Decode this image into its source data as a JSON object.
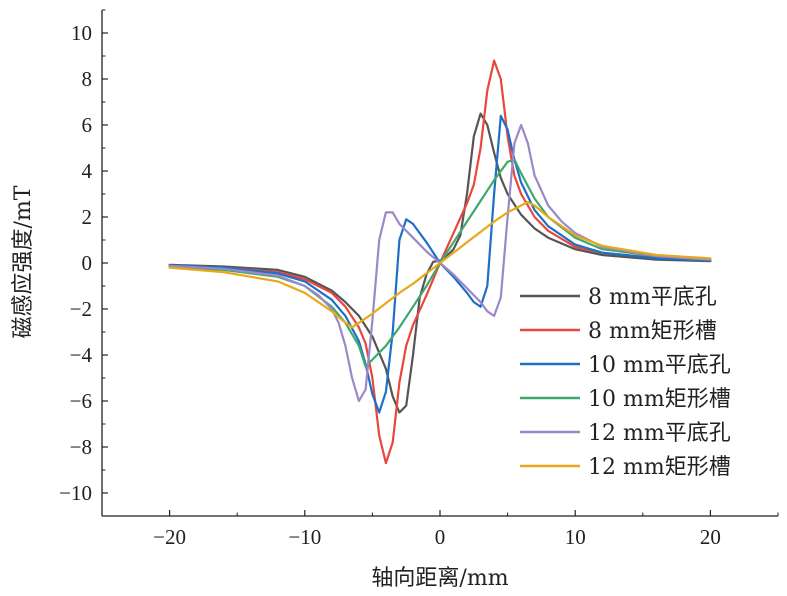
{
  "chart_data": {
    "type": "line",
    "xlabel": "轴向距离/mm",
    "ylabel": "磁感应强度/mT",
    "xlim": [
      -25,
      25
    ],
    "ylim": [
      -11,
      11
    ],
    "xticks": [
      -20,
      -10,
      0,
      10,
      20
    ],
    "yticks": [
      -10,
      -8,
      -6,
      -4,
      -2,
      0,
      2,
      4,
      6,
      8,
      10
    ],
    "xtick_labels": [
      "−20",
      "−10",
      "0",
      "10",
      "20"
    ],
    "ytick_labels": [
      "−10",
      "−8",
      "−6",
      "−4",
      "−2",
      "0",
      "2",
      "4",
      "6",
      "8",
      "10"
    ],
    "grid": false,
    "legend_position": "right",
    "series": [
      {
        "name": "8 mm平底孔",
        "color": "#555555",
        "points": [
          [
            -20,
            -0.08
          ],
          [
            -16,
            -0.15
          ],
          [
            -12,
            -0.3
          ],
          [
            -10,
            -0.6
          ],
          [
            -8,
            -1.2
          ],
          [
            -7,
            -1.7
          ],
          [
            -6,
            -2.3
          ],
          [
            -5,
            -3.2
          ],
          [
            -4,
            -4.6
          ],
          [
            -3.5,
            -5.8
          ],
          [
            -3,
            -6.5
          ],
          [
            -2.5,
            -6.2
          ],
          [
            -2,
            -4
          ],
          [
            -1.5,
            -1.5
          ],
          [
            -1,
            -0.5
          ],
          [
            -0.5,
            0.05
          ],
          [
            0,
            0.1
          ],
          [
            0.5,
            0.3
          ],
          [
            1,
            0.6
          ],
          [
            1.5,
            1.2
          ],
          [
            2,
            3
          ],
          [
            2.5,
            5.5
          ],
          [
            3,
            6.5
          ],
          [
            3.5,
            6
          ],
          [
            4,
            4.8
          ],
          [
            4.5,
            3.7
          ],
          [
            5,
            3
          ],
          [
            6,
            2.1
          ],
          [
            7,
            1.5
          ],
          [
            8,
            1.1
          ],
          [
            10,
            0.6
          ],
          [
            12,
            0.35
          ],
          [
            16,
            0.15
          ],
          [
            20,
            0.08
          ]
        ]
      },
      {
        "name": "8 mm矩形槽",
        "color": "#e8473d",
        "points": [
          [
            -20,
            -0.1
          ],
          [
            -16,
            -0.2
          ],
          [
            -12,
            -0.4
          ],
          [
            -10,
            -0.7
          ],
          [
            -8,
            -1.3
          ],
          [
            -7,
            -1.9
          ],
          [
            -6,
            -2.8
          ],
          [
            -5.5,
            -3.5
          ],
          [
            -5,
            -5
          ],
          [
            -4.5,
            -7.5
          ],
          [
            -4,
            -8.7
          ],
          [
            -3.5,
            -7.8
          ],
          [
            -3,
            -5.2
          ],
          [
            -2.5,
            -3.6
          ],
          [
            -2,
            -2.7
          ],
          [
            -1,
            -1.4
          ],
          [
            0,
            0
          ],
          [
            1,
            1.3
          ],
          [
            2,
            2.6
          ],
          [
            2.5,
            3.4
          ],
          [
            3,
            5
          ],
          [
            3.5,
            7.5
          ],
          [
            4,
            8.8
          ],
          [
            4.5,
            8
          ],
          [
            5,
            5.5
          ],
          [
            5.5,
            3.8
          ],
          [
            6,
            3
          ],
          [
            7,
            2
          ],
          [
            8,
            1.4
          ],
          [
            10,
            0.7
          ],
          [
            12,
            0.45
          ],
          [
            16,
            0.22
          ],
          [
            20,
            0.12
          ]
        ]
      },
      {
        "name": "10 mm平底孔",
        "color": "#1f6fc6",
        "points": [
          [
            -20,
            -0.1
          ],
          [
            -16,
            -0.2
          ],
          [
            -12,
            -0.45
          ],
          [
            -10,
            -0.8
          ],
          [
            -8,
            -1.6
          ],
          [
            -7,
            -2.3
          ],
          [
            -6,
            -3.4
          ],
          [
            -5.5,
            -4.4
          ],
          [
            -5,
            -5.7
          ],
          [
            -4.5,
            -6.5
          ],
          [
            -4,
            -5.6
          ],
          [
            -3.5,
            -3
          ],
          [
            -3,
            1
          ],
          [
            -2.5,
            1.9
          ],
          [
            -2,
            1.7
          ],
          [
            -1.5,
            1.3
          ],
          [
            -1,
            0.9
          ],
          [
            0,
            0
          ],
          [
            1,
            -0.6
          ],
          [
            2,
            -1.3
          ],
          [
            2.5,
            -1.7
          ],
          [
            3,
            -1.9
          ],
          [
            3.5,
            -1
          ],
          [
            4,
            3
          ],
          [
            4.5,
            6.4
          ],
          [
            5,
            5.8
          ],
          [
            5.5,
            4.5
          ],
          [
            6,
            3.5
          ],
          [
            7,
            2.3
          ],
          [
            8,
            1.6
          ],
          [
            10,
            0.8
          ],
          [
            12,
            0.45
          ],
          [
            16,
            0.2
          ],
          [
            20,
            0.1
          ]
        ]
      },
      {
        "name": "10 mm矩形槽",
        "color": "#3daa6c",
        "points": [
          [
            -20,
            -0.15
          ],
          [
            -16,
            -0.3
          ],
          [
            -12,
            -0.6
          ],
          [
            -10,
            -1
          ],
          [
            -8,
            -1.9
          ],
          [
            -7,
            -2.6
          ],
          [
            -6,
            -3.6
          ],
          [
            -5.5,
            -4.5
          ],
          [
            -5,
            -4.2
          ],
          [
            -4,
            -3.6
          ],
          [
            -3,
            -2.8
          ],
          [
            -2,
            -1.9
          ],
          [
            -1,
            -1
          ],
          [
            0,
            0
          ],
          [
            1,
            0.9
          ],
          [
            2,
            1.8
          ],
          [
            3,
            2.7
          ],
          [
            4,
            3.6
          ],
          [
            5,
            4.4
          ],
          [
            5.5,
            4.5
          ],
          [
            6,
            3.9
          ],
          [
            7,
            2.8
          ],
          [
            8,
            2
          ],
          [
            10,
            1.1
          ],
          [
            12,
            0.6
          ],
          [
            16,
            0.3
          ],
          [
            20,
            0.15
          ]
        ]
      },
      {
        "name": "12 mm平底孔",
        "color": "#9b88c8",
        "points": [
          [
            -20,
            -0.12
          ],
          [
            -16,
            -0.25
          ],
          [
            -12,
            -0.55
          ],
          [
            -10,
            -1
          ],
          [
            -9,
            -1.4
          ],
          [
            -8,
            -2
          ],
          [
            -7.5,
            -2.6
          ],
          [
            -7,
            -3.6
          ],
          [
            -6.5,
            -5
          ],
          [
            -6,
            -6
          ],
          [
            -5.5,
            -5.5
          ],
          [
            -5,
            -2.5
          ],
          [
            -4.5,
            1
          ],
          [
            -4,
            2.2
          ],
          [
            -3.5,
            2.2
          ],
          [
            -3,
            1.7
          ],
          [
            -2,
            1.1
          ],
          [
            -1,
            0.5
          ],
          [
            0,
            0
          ],
          [
            1,
            -0.5
          ],
          [
            2,
            -1.1
          ],
          [
            3,
            -1.7
          ],
          [
            3.5,
            -2.1
          ],
          [
            4,
            -2.3
          ],
          [
            4.5,
            -1.5
          ],
          [
            5,
            2
          ],
          [
            5.5,
            5.2
          ],
          [
            6,
            6
          ],
          [
            6.5,
            5.2
          ],
          [
            7,
            3.8
          ],
          [
            8,
            2.5
          ],
          [
            9,
            1.8
          ],
          [
            10,
            1.3
          ],
          [
            12,
            0.7
          ],
          [
            16,
            0.3
          ],
          [
            20,
            0.15
          ]
        ]
      },
      {
        "name": "12 mm矩形槽",
        "color": "#e8a81a",
        "points": [
          [
            -20,
            -0.2
          ],
          [
            -16,
            -0.4
          ],
          [
            -12,
            -0.8
          ],
          [
            -10,
            -1.3
          ],
          [
            -8,
            -2.1
          ],
          [
            -7,
            -2.6
          ],
          [
            -6.5,
            -2.8
          ],
          [
            -6,
            -2.6
          ],
          [
            -5,
            -2.2
          ],
          [
            -4,
            -1.75
          ],
          [
            -3,
            -1.3
          ],
          [
            -2,
            -0.9
          ],
          [
            -1,
            -0.45
          ],
          [
            0,
            0
          ],
          [
            1,
            0.45
          ],
          [
            2,
            0.9
          ],
          [
            3,
            1.35
          ],
          [
            4,
            1.8
          ],
          [
            5,
            2.2
          ],
          [
            6,
            2.5
          ],
          [
            6.5,
            2.65
          ],
          [
            7,
            2.5
          ],
          [
            8,
            2
          ],
          [
            10,
            1.2
          ],
          [
            12,
            0.75
          ],
          [
            16,
            0.35
          ],
          [
            20,
            0.2
          ]
        ]
      }
    ]
  }
}
